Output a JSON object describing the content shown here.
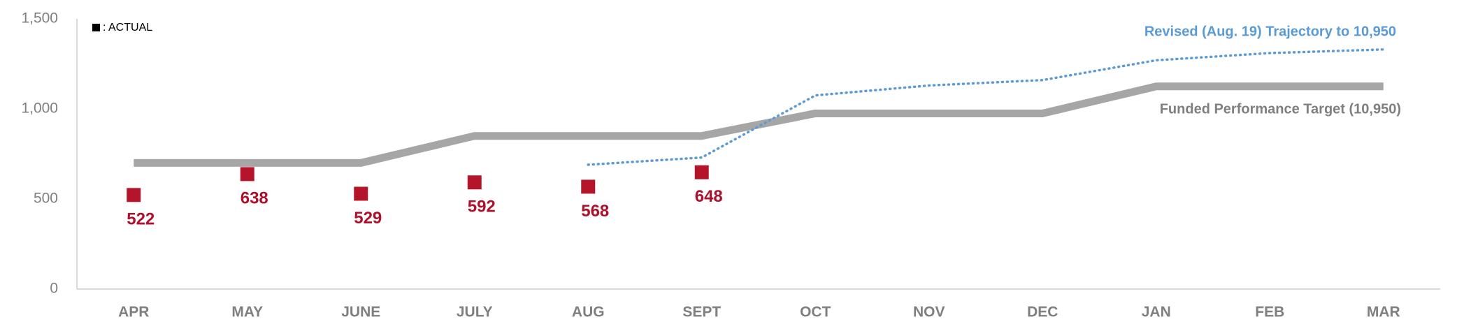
{
  "chart_data": {
    "type": "line",
    "categories": [
      "APR",
      "MAY",
      "JUNE",
      "JULY",
      "AUG",
      "SEPT",
      "OCT",
      "NOV",
      "DEC",
      "JAN",
      "FEB",
      "MAR"
    ],
    "series": [
      {
        "name": ": ACTUAL",
        "color": "#b5152b",
        "style": "marker",
        "values": [
          522,
          638,
          529,
          592,
          568,
          648,
          null,
          null,
          null,
          null,
          null,
          null
        ]
      },
      {
        "name": "Funded Performance Target (10,950)",
        "color": "#a6a6a6",
        "style": "solid",
        "values": [
          700,
          700,
          700,
          850,
          850,
          850,
          975,
          975,
          975,
          1125,
          1125,
          1125
        ]
      },
      {
        "name": "Revised (Aug. 19) Trajectory to 10,950",
        "color": "#5b9bd5",
        "style": "dotted",
        "values": [
          null,
          null,
          null,
          null,
          690,
          730,
          1075,
          1130,
          1160,
          1270,
          1310,
          1330
        ]
      }
    ],
    "ylim": [
      0,
      1500
    ],
    "yticks": [
      0,
      500,
      {
        "value": 1000,
        "label": "1,000"
      },
      {
        "value": 1500,
        "label": "1,500"
      }
    ],
    "grid": false
  }
}
